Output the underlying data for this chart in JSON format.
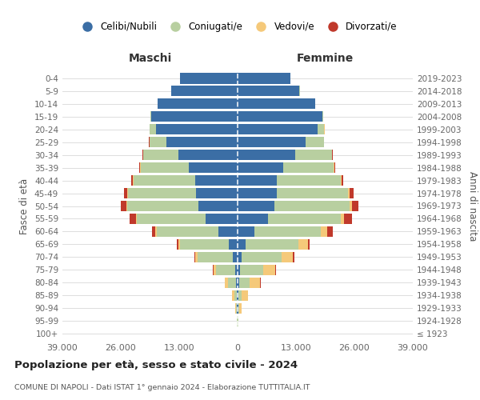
{
  "age_groups": [
    "100+",
    "95-99",
    "90-94",
    "85-89",
    "80-84",
    "75-79",
    "70-74",
    "65-69",
    "60-64",
    "55-59",
    "50-54",
    "45-49",
    "40-44",
    "35-39",
    "30-34",
    "25-29",
    "20-24",
    "15-19",
    "10-14",
    "5-9",
    "0-4"
  ],
  "birth_years": [
    "≤ 1923",
    "1924-1928",
    "1929-1933",
    "1934-1938",
    "1939-1943",
    "1944-1948",
    "1949-1953",
    "1954-1958",
    "1959-1963",
    "1964-1968",
    "1969-1973",
    "1974-1978",
    "1979-1983",
    "1984-1988",
    "1989-1993",
    "1994-1998",
    "1999-2003",
    "2004-2008",
    "2009-2013",
    "2014-2018",
    "2019-2023"
  ],
  "colors": {
    "celibi": "#3b6ea5",
    "coniugati": "#b8cfa0",
    "vedovi": "#f5c97a",
    "divorziati": "#c0392b"
  },
  "males": {
    "celibi": [
      40,
      80,
      120,
      180,
      350,
      600,
      1100,
      2000,
      4200,
      7200,
      8800,
      9200,
      9400,
      10800,
      13200,
      15800,
      18200,
      19200,
      17800,
      14800,
      12800
    ],
    "coniugati": [
      15,
      40,
      180,
      550,
      1800,
      4200,
      7800,
      10800,
      13800,
      15200,
      15800,
      15200,
      13800,
      10800,
      7800,
      3800,
      1400,
      280,
      80,
      20,
      8
    ],
    "vedovi": [
      8,
      40,
      180,
      450,
      650,
      550,
      550,
      380,
      280,
      180,
      180,
      130,
      90,
      70,
      50,
      40,
      25,
      8,
      4,
      2,
      1
    ],
    "divorziati": [
      2,
      8,
      25,
      45,
      70,
      90,
      180,
      380,
      850,
      1400,
      1150,
      750,
      380,
      180,
      90,
      45,
      25,
      8,
      4,
      2,
      1
    ]
  },
  "females": {
    "celibi": [
      40,
      80,
      120,
      180,
      350,
      550,
      950,
      1700,
      3800,
      6800,
      8200,
      8800,
      8800,
      10200,
      12800,
      15200,
      17800,
      18800,
      17200,
      13800,
      11800
    ],
    "coniugati": [
      15,
      40,
      180,
      750,
      2300,
      5200,
      8800,
      11800,
      14800,
      16200,
      16800,
      15800,
      14200,
      11200,
      8200,
      4000,
      1500,
      280,
      90,
      25,
      8
    ],
    "vedovi": [
      25,
      130,
      550,
      1400,
      2300,
      2600,
      2600,
      2100,
      1400,
      750,
      550,
      380,
      180,
      130,
      90,
      55,
      25,
      8,
      4,
      2,
      1
    ],
    "divorziati": [
      2,
      8,
      25,
      70,
      130,
      180,
      280,
      480,
      1150,
      1700,
      1350,
      850,
      380,
      180,
      90,
      45,
      25,
      8,
      4,
      2,
      1
    ]
  },
  "title": "Popolazione per età, sesso e stato civile - 2024",
  "subtitle": "COMUNE DI NAPOLI - Dati ISTAT 1° gennaio 2024 - Elaborazione TUTTITALIA.IT",
  "xlabel_left": "Maschi",
  "xlabel_right": "Femmine",
  "ylabel_left": "Fasce di età",
  "ylabel_right": "Anni di nascita",
  "xlim": 39000,
  "background_color": "#ffffff",
  "grid_color": "#d8d8d8"
}
